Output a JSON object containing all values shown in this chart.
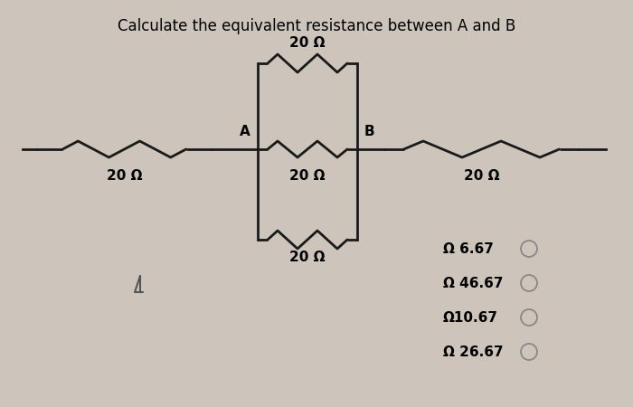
{
  "title": "Calculate the equivalent resistance between A and B",
  "title_fontsize": 12,
  "bg_color": "#cdc5bc",
  "line_color": "#1a1a1a",
  "options": [
    "Ω 6.67",
    "Ω 46.67",
    "Ω10.67",
    "Ω 26.67"
  ],
  "label_left": "20 Ω",
  "label_top": "20 Ω",
  "label_mid": "20 Ω",
  "label_bot": "20 Ω",
  "label_right": "20 Ω",
  "label_A": "A",
  "label_B": "B"
}
